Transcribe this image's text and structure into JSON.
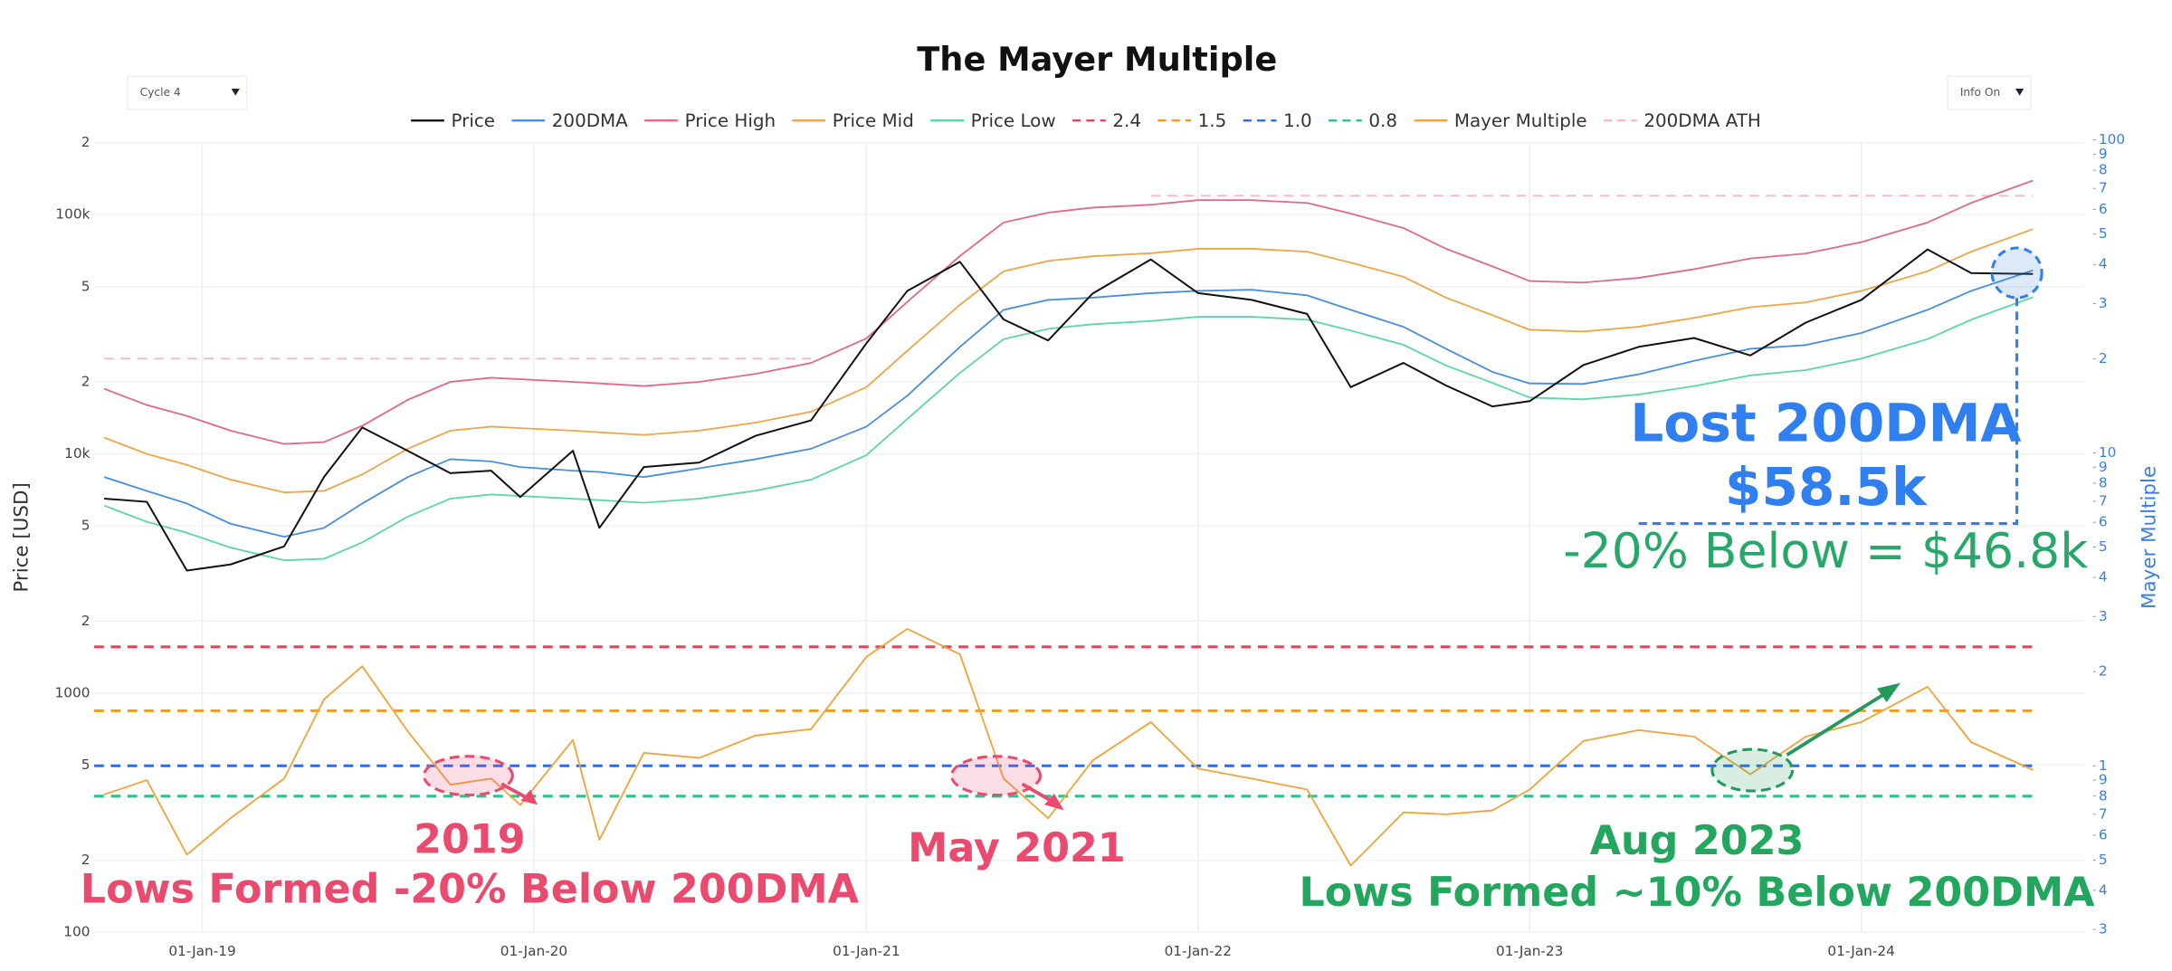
{
  "chart_data": {
    "type": "line",
    "title": "The Mayer Multiple",
    "controls": [
      "Cycle 4",
      "Info On"
    ],
    "ylabel": "Price [USD]",
    "y2label": "Mayer Multiple",
    "log_scale": true,
    "grid": true,
    "legend": "top",
    "x": [
      "2018-09-15",
      "2018-11-01",
      "2018-12-15",
      "2019-02-01",
      "2019-04-01",
      "2019-05-15",
      "2019-06-26",
      "2019-08-15",
      "2019-10-01",
      "2019-11-15",
      "2019-12-17",
      "2020-02-13",
      "2020-03-13",
      "2020-05-01",
      "2020-07-01",
      "2020-09-01",
      "2020-11-01",
      "2021-01-01",
      "2021-02-15",
      "2021-04-14",
      "2021-06-01",
      "2021-07-20",
      "2021-09-07",
      "2021-11-10",
      "2022-01-01",
      "2022-03-01",
      "2022-05-01",
      "2022-06-18",
      "2022-08-15",
      "2022-10-01",
      "2022-11-21",
      "2023-01-01",
      "2023-03-01",
      "2023-05-01",
      "2023-07-01",
      "2023-09-01",
      "2023-11-01",
      "2024-01-01",
      "2024-03-14",
      "2024-05-01",
      "2024-07-08"
    ],
    "xlim": [
      "2018-09-04",
      "2024-09-03"
    ],
    "xticks": [
      {
        "value": "2019-01-01",
        "label": "01-Jan-19"
      },
      {
        "value": "2020-01-01",
        "label": "01-Jan-20"
      },
      {
        "value": "2021-01-01",
        "label": "01-Jan-21"
      },
      {
        "value": "2022-01-01",
        "label": "01-Jan-22"
      },
      {
        "value": "2023-01-01",
        "label": "01-Jan-23"
      },
      {
        "value": "2024-01-01",
        "label": "01-Jan-24"
      }
    ],
    "ylim": [
      100,
      200000
    ],
    "yticks": [
      100,
      {
        "value": 200,
        "label": "2"
      },
      {
        "value": 500,
        "label": "5"
      },
      1000,
      {
        "value": 2000,
        "label": "2"
      },
      {
        "value": 5000,
        "label": "5"
      },
      {
        "value": 10000,
        "label": "10k"
      },
      {
        "value": 20000,
        "label": "2"
      },
      {
        "value": 50000,
        "label": "5"
      },
      {
        "value": 100000,
        "label": "100k"
      },
      {
        "value": 200000,
        "label": "2"
      }
    ],
    "y2lim": [
      0.294,
      98
    ],
    "y2ticks": [
      100,
      {
        "value": 90,
        "label": "9"
      },
      {
        "value": 80,
        "label": "8"
      },
      {
        "value": 70,
        "label": "7"
      },
      {
        "value": 60,
        "label": "6"
      },
      {
        "value": 50,
        "label": "5"
      },
      {
        "value": 40,
        "label": "4"
      },
      {
        "value": 30,
        "label": "3"
      },
      {
        "value": 20,
        "label": "2"
      },
      10,
      9,
      8,
      7,
      6,
      5,
      4,
      3,
      2,
      1,
      {
        "value": 0.9,
        "label": "9"
      },
      {
        "value": 0.8,
        "label": "8"
      },
      {
        "value": 0.7,
        "label": "7"
      },
      {
        "value": 0.6,
        "label": "6"
      },
      {
        "value": 0.5,
        "label": "5"
      },
      {
        "value": 0.4,
        "label": "4"
      },
      {
        "value": 0.3,
        "label": "3"
      }
    ],
    "series": [
      {
        "name": "Price",
        "color": "#111111",
        "values": [
          6500,
          6300,
          3250,
          3450,
          4100,
          8000,
          12900,
          10300,
          8300,
          8500,
          6600,
          10300,
          4900,
          8800,
          9200,
          11900,
          13800,
          29000,
          48000,
          63500,
          36500,
          29800,
          46800,
          65000,
          47000,
          44000,
          38500,
          19000,
          24000,
          19300,
          15800,
          16600,
          23500,
          28000,
          30500,
          25800,
          35400,
          44000,
          71500,
          57000,
          56500
        ]
      },
      {
        "name": "200DMA",
        "color": "#4a8fdc",
        "values": [
          8000,
          7000,
          6200,
          5100,
          4500,
          4900,
          6200,
          8000,
          9500,
          9300,
          8800,
          8500,
          8400,
          8000,
          8700,
          9500,
          10500,
          13000,
          17500,
          28000,
          40000,
          44000,
          45000,
          47000,
          48000,
          48500,
          46000,
          40000,
          34000,
          27500,
          22000,
          19700,
          19600,
          21500,
          24500,
          27500,
          28500,
          32000,
          40000,
          48000,
          58500
        ]
      },
      {
        "name": "Price High",
        "color": "#e06a8a",
        "values": [
          18700,
          16000,
          14400,
          12500,
          11000,
          11200,
          13100,
          16800,
          20000,
          20800,
          20500,
          20000,
          19700,
          19200,
          20000,
          21600,
          24000,
          30400,
          43200,
          67200,
          92800,
          102000,
          107000,
          110000,
          115000,
          115000,
          112000,
          101000,
          88000,
          72000,
          60800,
          52800,
          52000,
          54400,
          59200,
          65600,
          68800,
          76800,
          92800,
          112000,
          139000
        ]
      },
      {
        "name": "Price Mid",
        "color": "#eda64a",
        "values": [
          11700,
          10000,
          9000,
          7800,
          6900,
          7000,
          8200,
          10500,
          12500,
          13000,
          12800,
          12500,
          12300,
          12000,
          12500,
          13500,
          15000,
          19000,
          27000,
          42000,
          58000,
          64000,
          67000,
          69000,
          72000,
          72000,
          70000,
          63000,
          55000,
          45000,
          38000,
          33000,
          32500,
          34000,
          37000,
          41000,
          43000,
          48000,
          58000,
          70000,
          87000
        ]
      },
      {
        "name": "Price Low",
        "color": "#5fd6a6",
        "values": [
          6080,
          5200,
          4680,
          4060,
          3590,
          3640,
          4260,
          5460,
          6500,
          6760,
          6660,
          6500,
          6400,
          6240,
          6500,
          7020,
          7800,
          9880,
          14000,
          21800,
          30200,
          33300,
          34800,
          35900,
          37400,
          37400,
          36400,
          32800,
          28600,
          23400,
          19800,
          17200,
          16900,
          17700,
          19200,
          21300,
          22400,
          25000,
          30200,
          36400,
          45200
        ]
      },
      {
        "name": "Mayer Multiple",
        "color": "#f0a43c",
        "axis": "y2",
        "values": [
          0.81,
          0.9,
          0.52,
          0.68,
          0.91,
          1.63,
          2.08,
          1.29,
          0.87,
          0.91,
          0.75,
          1.21,
          0.58,
          1.1,
          1.06,
          1.25,
          1.31,
          2.23,
          2.74,
          2.27,
          0.91,
          0.68,
          1.04,
          1.38,
          0.98,
          0.91,
          0.84,
          0.48,
          0.71,
          0.7,
          0.72,
          0.84,
          1.2,
          1.3,
          1.24,
          0.94,
          1.24,
          1.38,
          1.79,
          1.19,
          0.97
        ]
      },
      {
        "name": "200DMA ATH",
        "color": "#f4b8c8",
        "dashed": true,
        "values": [
          25000,
          25000,
          25000,
          25000,
          25000,
          25000,
          25000,
          25000,
          25000,
          25000,
          25000,
          25000,
          25000,
          25000,
          25000,
          25000,
          25000,
          null,
          null,
          null,
          null,
          null,
          null,
          120000,
          120000,
          120000,
          120000,
          120000,
          120000,
          120000,
          120000,
          120000,
          120000,
          120000,
          120000,
          120000,
          120000,
          120000,
          120000,
          120000,
          120000
        ]
      }
    ],
    "levels": [
      {
        "name": "2.4",
        "color": "#e8435a",
        "axis": "y2",
        "value": 2.4
      },
      {
        "name": "1.5",
        "color": "#f09a22",
        "axis": "y2",
        "value": 1.5
      },
      {
        "name": "1.0",
        "color": "#2e6be6",
        "axis": "y2",
        "value": 1
      },
      {
        "name": "0.8",
        "color": "#2dc08a",
        "axis": "y2",
        "value": 0.8
      }
    ],
    "legend_order": [
      "series.0",
      "series.1",
      "series.2",
      "series.3",
      "series.4",
      "levels.0",
      "levels.1",
      "levels.2",
      "levels.3",
      "series.5",
      "series.6"
    ],
    "annotations": [
      "Lost 200DMA",
      "$58.5k",
      "-20% Below = $46.8k",
      "2019",
      "Lows Formed -20% Below 200DMA",
      "May 2021",
      "Aug 2023",
      "Lows Formed ~10% Below 200DMA"
    ]
  }
}
